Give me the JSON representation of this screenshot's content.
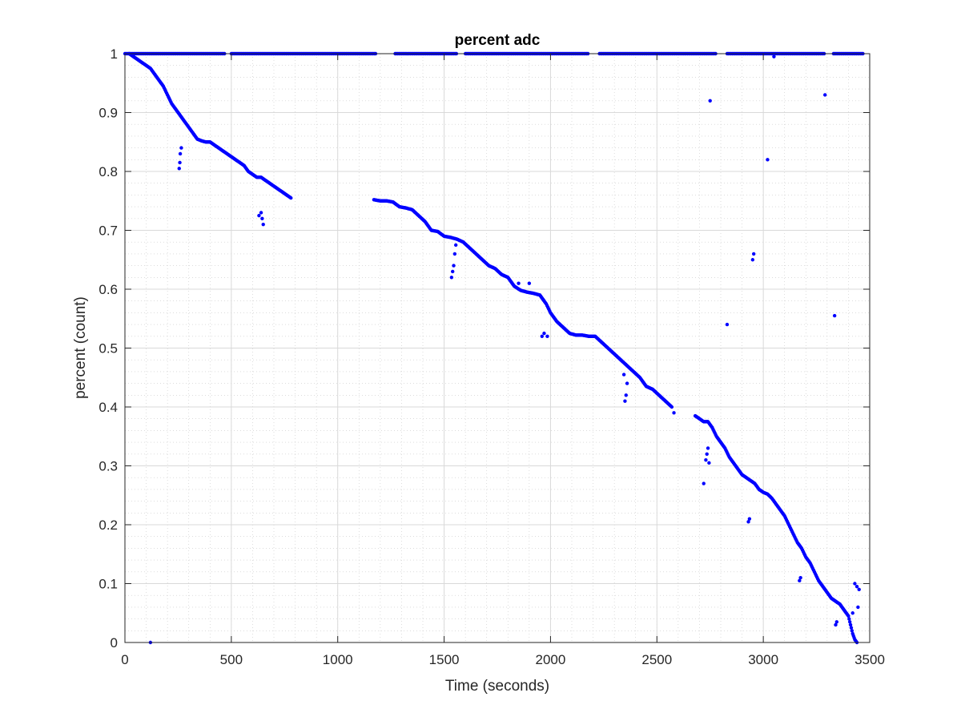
{
  "chart_data": {
    "type": "scatter",
    "title": "percent adc",
    "xlabel": "Time (seconds)",
    "ylabel": "percent (count)",
    "xlim": [
      0,
      3500
    ],
    "ylim": [
      0,
      1
    ],
    "xticks": [
      0,
      500,
      1000,
      1500,
      2000,
      2500,
      3000,
      3500
    ],
    "xtick_labels": [
      "0",
      "500",
      "1000",
      "1500",
      "2000",
      "2500",
      "3000",
      "3500"
    ],
    "yticks": [
      0,
      0.1,
      0.2,
      0.3,
      0.4,
      0.5,
      0.6,
      0.7,
      0.8,
      0.9,
      1
    ],
    "ytick_labels": [
      "0",
      "0.1",
      "0.2",
      "0.3",
      "0.4",
      "0.5",
      "0.6",
      "0.7",
      "0.8",
      "0.9",
      "1"
    ],
    "grid": true,
    "minor_grid": true,
    "marker_color": "#0000ff",
    "top_band": {
      "y": 1.0,
      "segments": [
        [
          0,
          470
        ],
        [
          500,
          1180
        ],
        [
          1270,
          1560
        ],
        [
          1600,
          2180
        ],
        [
          2230,
          2780
        ],
        [
          2830,
          3290
        ],
        [
          3330,
          3470
        ]
      ]
    },
    "main_trend": [
      [
        20,
        1.0
      ],
      [
        40,
        0.995
      ],
      [
        60,
        0.99
      ],
      [
        80,
        0.985
      ],
      [
        100,
        0.98
      ],
      [
        120,
        0.975
      ],
      [
        140,
        0.965
      ],
      [
        160,
        0.955
      ],
      [
        180,
        0.945
      ],
      [
        200,
        0.93
      ],
      [
        220,
        0.915
      ],
      [
        240,
        0.905
      ],
      [
        260,
        0.895
      ],
      [
        280,
        0.885
      ],
      [
        300,
        0.875
      ],
      [
        320,
        0.865
      ],
      [
        340,
        0.855
      ],
      [
        360,
        0.852
      ],
      [
        380,
        0.85
      ],
      [
        400,
        0.85
      ],
      [
        420,
        0.845
      ],
      [
        440,
        0.84
      ],
      [
        460,
        0.835
      ],
      [
        480,
        0.83
      ],
      [
        500,
        0.825
      ],
      [
        520,
        0.82
      ],
      [
        540,
        0.815
      ],
      [
        560,
        0.81
      ],
      [
        580,
        0.8
      ],
      [
        600,
        0.795
      ],
      [
        620,
        0.79
      ],
      [
        640,
        0.79
      ],
      [
        660,
        0.785
      ],
      [
        680,
        0.78
      ],
      [
        700,
        0.775
      ],
      [
        720,
        0.77
      ],
      [
        740,
        0.765
      ],
      [
        760,
        0.76
      ],
      [
        780,
        0.755
      ],
      [
        1170,
        0.752
      ],
      [
        1200,
        0.75
      ],
      [
        1230,
        0.75
      ],
      [
        1260,
        0.748
      ],
      [
        1290,
        0.74
      ],
      [
        1320,
        0.738
      ],
      [
        1350,
        0.735
      ],
      [
        1380,
        0.725
      ],
      [
        1410,
        0.715
      ],
      [
        1440,
        0.7
      ],
      [
        1470,
        0.698
      ],
      [
        1500,
        0.69
      ],
      [
        1530,
        0.688
      ],
      [
        1560,
        0.685
      ],
      [
        1590,
        0.68
      ],
      [
        1620,
        0.67
      ],
      [
        1650,
        0.66
      ],
      [
        1680,
        0.65
      ],
      [
        1710,
        0.64
      ],
      [
        1740,
        0.635
      ],
      [
        1770,
        0.625
      ],
      [
        1800,
        0.62
      ],
      [
        1830,
        0.605
      ],
      [
        1860,
        0.598
      ],
      [
        1890,
        0.595
      ],
      [
        1920,
        0.593
      ],
      [
        1950,
        0.59
      ],
      [
        1980,
        0.575
      ],
      [
        2000,
        0.56
      ],
      [
        2030,
        0.545
      ],
      [
        2060,
        0.535
      ],
      [
        2090,
        0.525
      ],
      [
        2120,
        0.522
      ],
      [
        2150,
        0.522
      ],
      [
        2180,
        0.52
      ],
      [
        2210,
        0.52
      ],
      [
        2240,
        0.51
      ],
      [
        2270,
        0.5
      ],
      [
        2300,
        0.49
      ],
      [
        2330,
        0.48
      ],
      [
        2360,
        0.47
      ],
      [
        2390,
        0.46
      ],
      [
        2420,
        0.45
      ],
      [
        2450,
        0.435
      ],
      [
        2480,
        0.43
      ],
      [
        2510,
        0.42
      ],
      [
        2540,
        0.41
      ],
      [
        2570,
        0.4
      ],
      [
        2680,
        0.385
      ],
      [
        2700,
        0.38
      ],
      [
        2720,
        0.375
      ],
      [
        2740,
        0.375
      ],
      [
        2760,
        0.365
      ],
      [
        2780,
        0.35
      ],
      [
        2800,
        0.34
      ],
      [
        2820,
        0.33
      ],
      [
        2840,
        0.315
      ],
      [
        2860,
        0.305
      ],
      [
        2880,
        0.295
      ],
      [
        2900,
        0.285
      ],
      [
        2920,
        0.28
      ],
      [
        2940,
        0.275
      ],
      [
        2960,
        0.27
      ],
      [
        2980,
        0.26
      ],
      [
        3000,
        0.255
      ],
      [
        3020,
        0.252
      ],
      [
        3040,
        0.245
      ],
      [
        3060,
        0.235
      ],
      [
        3080,
        0.225
      ],
      [
        3100,
        0.215
      ],
      [
        3120,
        0.2
      ],
      [
        3140,
        0.185
      ],
      [
        3160,
        0.17
      ],
      [
        3180,
        0.16
      ],
      [
        3200,
        0.145
      ],
      [
        3220,
        0.135
      ],
      [
        3240,
        0.12
      ],
      [
        3260,
        0.105
      ],
      [
        3280,
        0.095
      ],
      [
        3300,
        0.085
      ],
      [
        3320,
        0.075
      ],
      [
        3340,
        0.07
      ],
      [
        3360,
        0.065
      ],
      [
        3380,
        0.055
      ],
      [
        3400,
        0.045
      ],
      [
        3410,
        0.03
      ],
      [
        3420,
        0.015
      ],
      [
        3430,
        0.005
      ],
      [
        3440,
        0.0
      ]
    ],
    "outliers": [
      [
        255,
        0.805
      ],
      [
        258,
        0.815
      ],
      [
        260,
        0.83
      ],
      [
        265,
        0.84
      ],
      [
        630,
        0.725
      ],
      [
        640,
        0.73
      ],
      [
        645,
        0.72
      ],
      [
        650,
        0.71
      ],
      [
        1535,
        0.62
      ],
      [
        1540,
        0.63
      ],
      [
        1545,
        0.64
      ],
      [
        1550,
        0.66
      ],
      [
        1555,
        0.675
      ],
      [
        1960,
        0.52
      ],
      [
        1970,
        0.525
      ],
      [
        1985,
        0.52
      ],
      [
        1900,
        0.61
      ],
      [
        1850,
        0.61
      ],
      [
        2350,
        0.41
      ],
      [
        2355,
        0.42
      ],
      [
        2360,
        0.44
      ],
      [
        2345,
        0.455
      ],
      [
        2580,
        0.39
      ],
      [
        2730,
        0.31
      ],
      [
        2735,
        0.32
      ],
      [
        2740,
        0.33
      ],
      [
        2745,
        0.305
      ],
      [
        2720,
        0.27
      ],
      [
        2750,
        0.92
      ],
      [
        2830,
        0.54
      ],
      [
        2930,
        0.205
      ],
      [
        2935,
        0.21
      ],
      [
        2950,
        0.65
      ],
      [
        2955,
        0.66
      ],
      [
        3020,
        0.82
      ],
      [
        3050,
        0.995
      ],
      [
        3170,
        0.105
      ],
      [
        3175,
        0.11
      ],
      [
        3290,
        0.93
      ],
      [
        3335,
        0.555
      ],
      [
        3340,
        0.03
      ],
      [
        3345,
        0.035
      ],
      [
        3430,
        0.1
      ],
      [
        3440,
        0.095
      ],
      [
        3450,
        0.09
      ],
      [
        3420,
        0.05
      ],
      [
        3445,
        0.06
      ],
      [
        120,
        0.0
      ]
    ]
  }
}
